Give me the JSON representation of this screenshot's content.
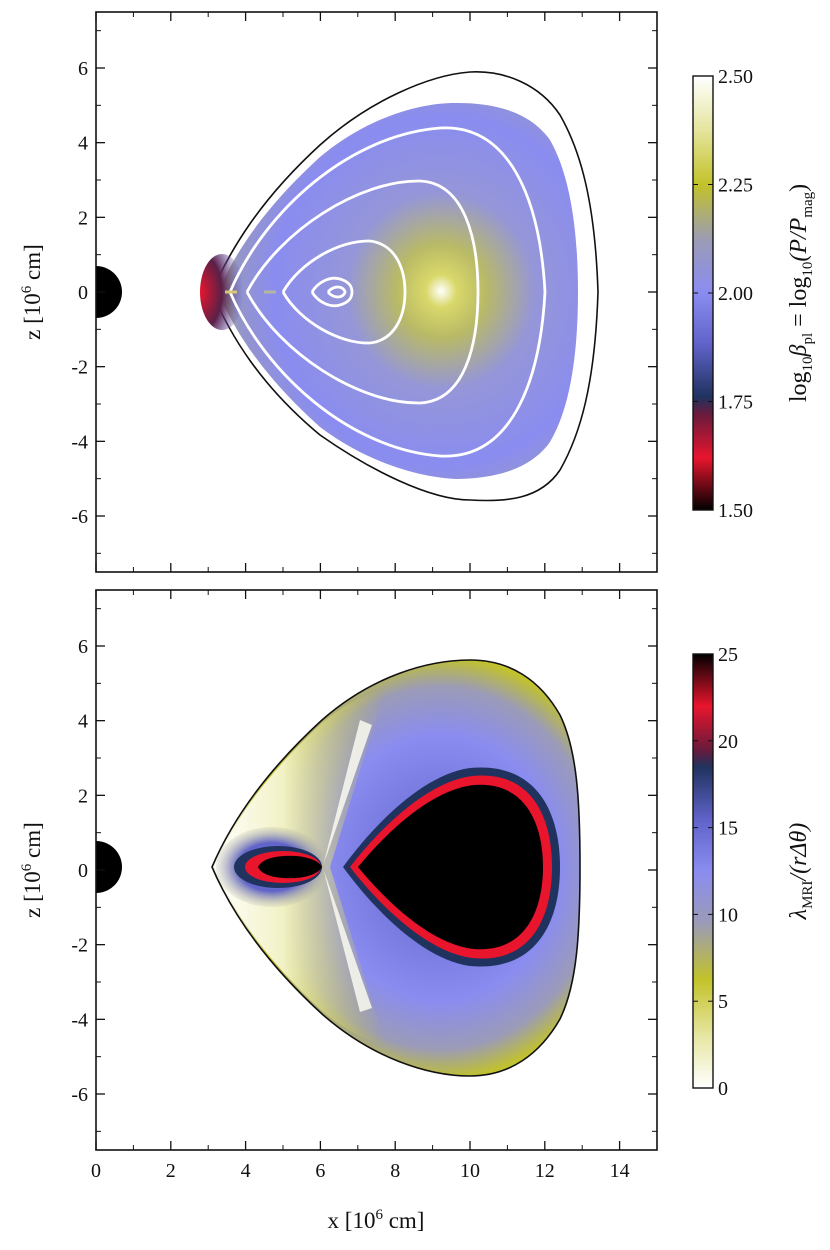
{
  "chart_data": [
    {
      "type": "heatmap",
      "panel": "top",
      "xlabel": "x [10^6 cm]",
      "ylabel": "z [10^6 cm]",
      "xlim": [
        0,
        15
      ],
      "ylim": [
        -7.5,
        7.5
      ],
      "x_ticks": [
        0,
        2,
        4,
        6,
        8,
        10,
        12,
        14
      ],
      "y_ticks": [
        -6,
        -4,
        -2,
        0,
        2,
        4,
        6
      ],
      "colorbar": {
        "label": "log10 β_pl = log10(P/P_mag)",
        "range": [
          1.5,
          2.5
        ],
        "ticks": [
          "2.50",
          "2.25",
          "2.00",
          "1.75",
          "1.50"
        ],
        "tick_values": [
          2.5,
          2.25,
          2.0,
          1.75,
          1.5
        ]
      },
      "annotations": [
        "central compact object (black semicircle) at origin, radius ~1",
        "white contours: magnetic field lines, nested loops centred near (6.5, 0)"
      ],
      "description_values": {
        "outer_boundary_x_range": [
          3.1,
          13.3
        ],
        "outer_boundary_z_range": [
          -5.6,
          5.6
        ],
        "core_center": [
          6.4,
          0
        ]
      }
    },
    {
      "type": "heatmap",
      "panel": "bottom",
      "xlabel": "x [10^6 cm]",
      "ylabel": "z [10^6 cm]",
      "xlim": [
        0,
        15
      ],
      "ylim": [
        -7.5,
        7.5
      ],
      "x_ticks": [
        0,
        2,
        4,
        6,
        8,
        10,
        12,
        14
      ],
      "y_ticks": [
        -6,
        -4,
        -2,
        0,
        2,
        4,
        6
      ],
      "colorbar": {
        "label": "λ_MRI/(rΔθ)",
        "range": [
          0,
          25
        ],
        "ticks": [
          "25",
          "20",
          "15",
          "10",
          "5",
          "0"
        ],
        "tick_values": [
          25,
          20,
          15,
          10,
          5,
          0
        ]
      },
      "annotations": [
        "central compact object (black semicircle) at origin, radius ~1",
        "small saturated lobe near x≈5, large saturated lobe centred near x≈10.3"
      ],
      "description_values": {
        "outer_boundary_x_range": [
          3.1,
          12.8
        ],
        "outer_boundary_z_range": [
          -5.6,
          5.6
        ]
      }
    }
  ],
  "labels": {
    "y_axis_top": "z [10",
    "y_axis_bottom": "z [10",
    "y_axis_exp": "6",
    "y_axis_unit": " cm]",
    "x_axis": "x [10",
    "x_axis_exp": "6",
    "x_axis_unit": " cm]",
    "cb1_main_log": "log",
    "cb1_sub_10": "10",
    "cb1_beta": "β",
    "cb1_sub_pl": "pl",
    "cb1_eq_log": " = log",
    "cb1_sub_10b": "10",
    "cb1_paren": "(P/P",
    "cb1_sub_mag": "mag",
    "cb1_close": ")",
    "cb2_lambda": "λ",
    "cb2_sub": "MRI",
    "cb2_rest": "/(rΔθ)"
  },
  "colors": {
    "blue_mid": "#8a8cf0",
    "yellow": "#c2c22a",
    "red": "#e8152d",
    "dark_navy": "#1e2a5a",
    "black": "#000000",
    "white": "#ffffff"
  }
}
